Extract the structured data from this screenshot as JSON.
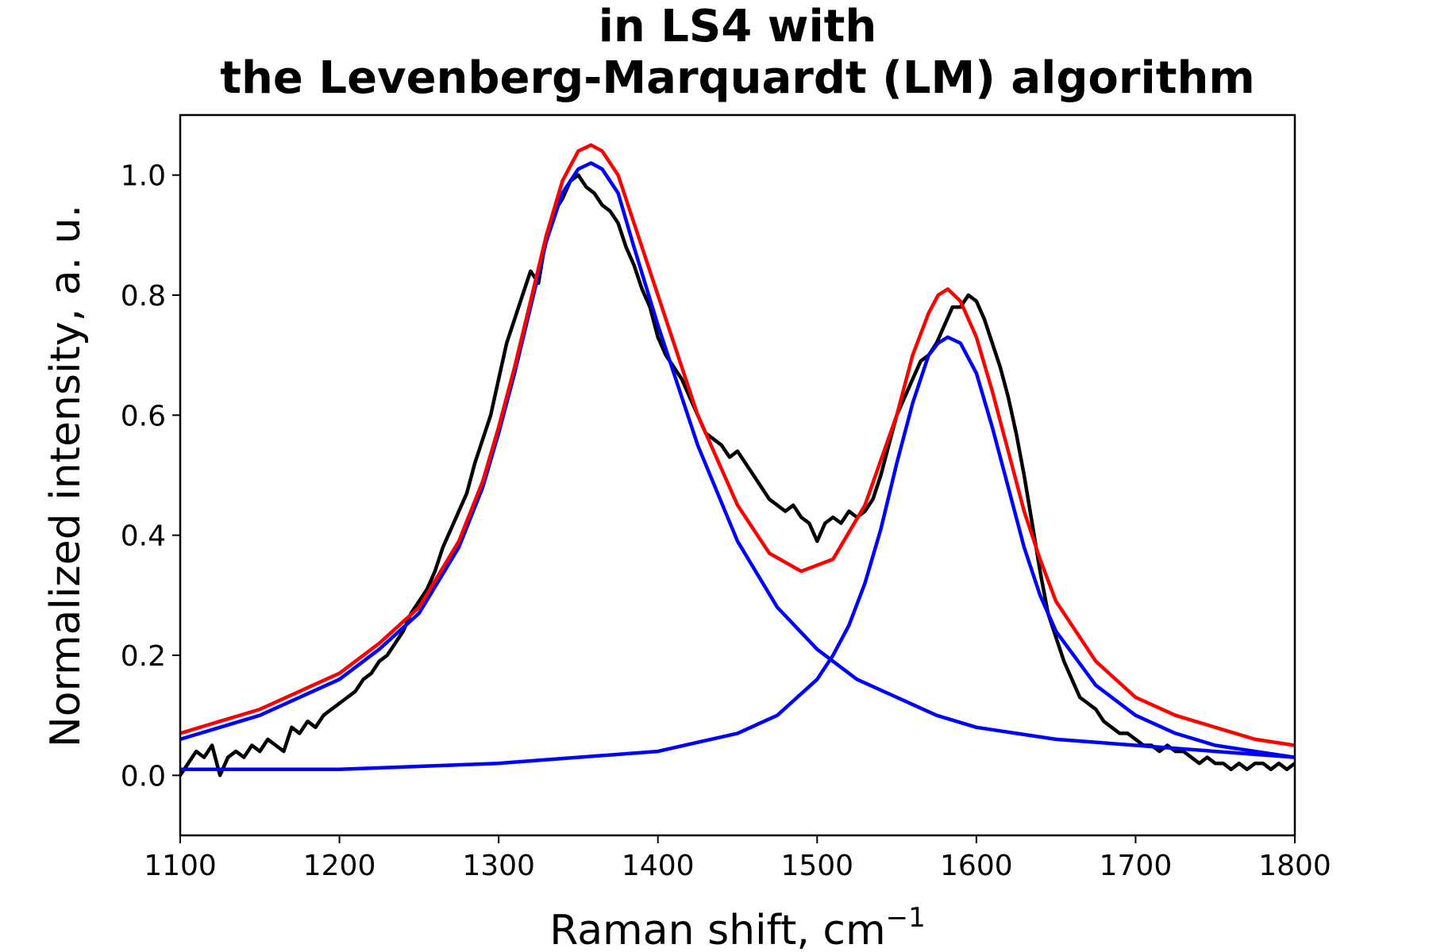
{
  "chart_data": {
    "type": "line",
    "title_lines": [
      "in LS4 with",
      "the Levenberg-Marquardt (LM) algorithm"
    ],
    "xlabel": "Raman shift, cm",
    "xlabel_superscript": "−1",
    "ylabel": "Normalized intensity, a. u.",
    "xlim": [
      1100,
      1800
    ],
    "ylim": [
      -0.1,
      1.1
    ],
    "x_ticks": [
      "1100",
      "1200",
      "1300",
      "1400",
      "1500",
      "1600",
      "1700",
      "1800"
    ],
    "y_ticks": [
      "0.0",
      "0.2",
      "0.4",
      "0.6",
      "0.8",
      "1.0"
    ],
    "grid": false,
    "series": [
      {
        "color": "#000000",
        "x": [
          1100,
          1105,
          1110,
          1115,
          1120,
          1125,
          1130,
          1135,
          1140,
          1145,
          1150,
          1155,
          1160,
          1165,
          1170,
          1175,
          1180,
          1185,
          1190,
          1195,
          1200,
          1205,
          1210,
          1215,
          1220,
          1225,
          1230,
          1235,
          1240,
          1245,
          1250,
          1255,
          1260,
          1265,
          1270,
          1275,
          1280,
          1285,
          1290,
          1295,
          1300,
          1305,
          1310,
          1315,
          1320,
          1325,
          1330,
          1335,
          1340,
          1345,
          1350,
          1355,
          1360,
          1365,
          1370,
          1375,
          1380,
          1385,
          1390,
          1395,
          1400,
          1405,
          1410,
          1415,
          1420,
          1425,
          1430,
          1435,
          1440,
          1445,
          1450,
          1455,
          1460,
          1465,
          1470,
          1475,
          1480,
          1485,
          1490,
          1495,
          1500,
          1505,
          1510,
          1515,
          1520,
          1525,
          1530,
          1535,
          1540,
          1545,
          1550,
          1555,
          1560,
          1565,
          1570,
          1575,
          1580,
          1585,
          1590,
          1595,
          1600,
          1605,
          1610,
          1615,
          1620,
          1625,
          1630,
          1635,
          1640,
          1645,
          1650,
          1655,
          1660,
          1665,
          1670,
          1675,
          1680,
          1685,
          1690,
          1695,
          1700,
          1705,
          1710,
          1715,
          1720,
          1725,
          1730,
          1735,
          1740,
          1745,
          1750,
          1755,
          1760,
          1765,
          1770,
          1775,
          1780,
          1785,
          1790,
          1795,
          1800
        ],
        "values": [
          0.0,
          0.02,
          0.04,
          0.03,
          0.05,
          0.0,
          0.03,
          0.04,
          0.03,
          0.05,
          0.04,
          0.06,
          0.05,
          0.04,
          0.08,
          0.07,
          0.09,
          0.08,
          0.1,
          0.11,
          0.12,
          0.13,
          0.14,
          0.16,
          0.17,
          0.19,
          0.2,
          0.22,
          0.24,
          0.27,
          0.29,
          0.31,
          0.34,
          0.38,
          0.41,
          0.44,
          0.47,
          0.52,
          0.56,
          0.6,
          0.66,
          0.72,
          0.76,
          0.8,
          0.84,
          0.82,
          0.9,
          0.94,
          0.96,
          0.99,
          1.0,
          0.98,
          0.97,
          0.95,
          0.94,
          0.92,
          0.88,
          0.85,
          0.81,
          0.78,
          0.73,
          0.7,
          0.68,
          0.66,
          0.63,
          0.6,
          0.57,
          0.56,
          0.55,
          0.53,
          0.54,
          0.52,
          0.5,
          0.48,
          0.46,
          0.45,
          0.44,
          0.45,
          0.43,
          0.42,
          0.39,
          0.42,
          0.43,
          0.42,
          0.44,
          0.43,
          0.44,
          0.46,
          0.5,
          0.55,
          0.6,
          0.63,
          0.66,
          0.69,
          0.7,
          0.72,
          0.75,
          0.78,
          0.78,
          0.8,
          0.79,
          0.76,
          0.72,
          0.68,
          0.63,
          0.57,
          0.5,
          0.42,
          0.34,
          0.27,
          0.23,
          0.19,
          0.16,
          0.13,
          0.12,
          0.11,
          0.09,
          0.08,
          0.07,
          0.07,
          0.06,
          0.05,
          0.05,
          0.04,
          0.05,
          0.04,
          0.04,
          0.03,
          0.02,
          0.03,
          0.02,
          0.02,
          0.01,
          0.02,
          0.01,
          0.02,
          0.02,
          0.01,
          0.02,
          0.01,
          0.02
        ]
      },
      {
        "color": "#0000ff",
        "x": [
          1100,
          1125,
          1150,
          1175,
          1200,
          1225,
          1250,
          1275,
          1290,
          1300,
          1310,
          1320,
          1330,
          1340,
          1350,
          1358,
          1365,
          1375,
          1385,
          1400,
          1425,
          1450,
          1475,
          1500,
          1525,
          1550,
          1575,
          1600,
          1625,
          1650,
          1700,
          1750,
          1800
        ],
        "values": [
          0.06,
          0.08,
          0.1,
          0.13,
          0.16,
          0.21,
          0.27,
          0.38,
          0.48,
          0.57,
          0.67,
          0.78,
          0.89,
          0.97,
          1.01,
          1.02,
          1.01,
          0.97,
          0.88,
          0.75,
          0.55,
          0.39,
          0.28,
          0.21,
          0.16,
          0.13,
          0.1,
          0.08,
          0.07,
          0.06,
          0.05,
          0.04,
          0.03
        ]
      },
      {
        "color": "#0000ff",
        "x": [
          1100,
          1200,
          1300,
          1350,
          1400,
          1450,
          1475,
          1500,
          1510,
          1520,
          1530,
          1540,
          1550,
          1560,
          1570,
          1576,
          1582,
          1590,
          1600,
          1610,
          1620,
          1630,
          1640,
          1650,
          1675,
          1700,
          1725,
          1750,
          1775,
          1800
        ],
        "values": [
          0.01,
          0.01,
          0.02,
          0.03,
          0.04,
          0.07,
          0.1,
          0.16,
          0.2,
          0.25,
          0.32,
          0.41,
          0.52,
          0.62,
          0.7,
          0.72,
          0.73,
          0.72,
          0.67,
          0.58,
          0.48,
          0.38,
          0.3,
          0.24,
          0.15,
          0.1,
          0.07,
          0.05,
          0.04,
          0.03
        ]
      },
      {
        "color": "#ff0000",
        "x": [
          1100,
          1125,
          1150,
          1175,
          1200,
          1225,
          1250,
          1275,
          1290,
          1300,
          1310,
          1320,
          1330,
          1340,
          1350,
          1358,
          1365,
          1375,
          1385,
          1400,
          1425,
          1450,
          1470,
          1490,
          1510,
          1530,
          1550,
          1560,
          1570,
          1576,
          1582,
          1590,
          1600,
          1610,
          1620,
          1630,
          1640,
          1650,
          1675,
          1700,
          1725,
          1750,
          1775,
          1800
        ],
        "values": [
          0.07,
          0.09,
          0.11,
          0.14,
          0.17,
          0.22,
          0.28,
          0.39,
          0.49,
          0.58,
          0.68,
          0.79,
          0.9,
          0.99,
          1.04,
          1.05,
          1.04,
          1.0,
          0.92,
          0.8,
          0.6,
          0.45,
          0.37,
          0.34,
          0.36,
          0.45,
          0.6,
          0.7,
          0.77,
          0.8,
          0.81,
          0.79,
          0.73,
          0.64,
          0.54,
          0.44,
          0.36,
          0.29,
          0.19,
          0.13,
          0.1,
          0.08,
          0.06,
          0.05
        ]
      }
    ]
  }
}
